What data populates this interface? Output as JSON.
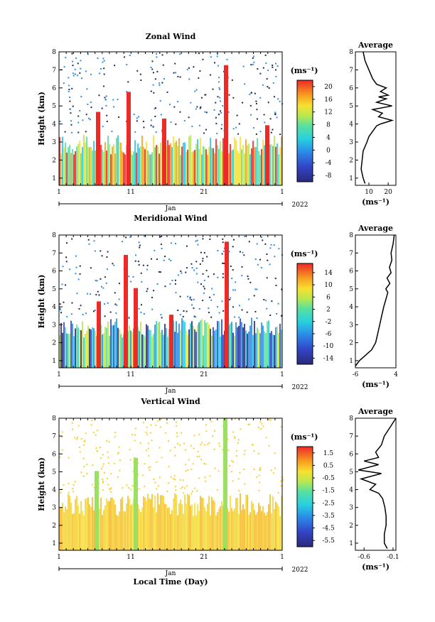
{
  "chart_data": [
    {
      "type": "heatmap",
      "title": "Zonal Wind",
      "ylabel": "Height (km)",
      "xlabel": "",
      "x_tick_labels": [
        "1",
        "11",
        "21",
        "1"
      ],
      "x_month_label": "Jan",
      "x_year_label": "2022",
      "ylim": [
        0.6,
        8
      ],
      "y_ticks": [
        1,
        2,
        3,
        4,
        5,
        6,
        7,
        8
      ],
      "colorbar": {
        "unit": "(ms⁻¹)",
        "ticks": [
          20,
          16,
          12,
          8,
          4,
          0,
          -4,
          -8
        ],
        "range": [
          -10,
          22
        ]
      },
      "profile": {
        "title": "Average",
        "xlabel": "(ms⁻¹)",
        "x_ticks": [
          10,
          20
        ],
        "xlim": [
          3,
          24
        ],
        "height_km": [
          0.7,
          1.0,
          1.5,
          2.0,
          2.5,
          3.0,
          3.3,
          3.6,
          3.9,
          4.0,
          4.2,
          4.4,
          4.6,
          4.8,
          5.0,
          5.2,
          5.4,
          5.5,
          5.6,
          5.8,
          6.0,
          6.2,
          6.5,
          7.0,
          7.5,
          8.0
        ],
        "values": [
          8,
          7,
          6,
          6.5,
          7,
          9,
          10,
          12,
          14,
          16,
          22,
          15,
          17,
          12,
          22,
          14,
          19,
          15,
          20,
          16,
          19,
          14,
          12,
          10,
          8,
          7
        ]
      }
    },
    {
      "type": "heatmap",
      "title": "Meridional Wind",
      "ylabel": "Height (km)",
      "xlabel": "",
      "x_tick_labels": [
        "1",
        "11",
        "21",
        "1"
      ],
      "x_month_label": "Jan",
      "x_year_label": "2022",
      "ylim": [
        0.6,
        8
      ],
      "y_ticks": [
        1,
        2,
        3,
        4,
        5,
        6,
        7,
        8
      ],
      "colorbar": {
        "unit": "(ms⁻¹)",
        "ticks": [
          14,
          10,
          6,
          2,
          -2,
          -6,
          -10,
          -14
        ],
        "range": [
          -16,
          17
        ]
      },
      "profile": {
        "title": "Average",
        "xlabel": "(ms⁻¹)",
        "x_ticks": [
          -6,
          4
        ],
        "xlim": [
          -6,
          4
        ],
        "height_km": [
          0.7,
          1.0,
          1.3,
          1.6,
          2.0,
          2.5,
          3.0,
          3.5,
          4.0,
          4.4,
          4.8,
          5.0,
          5.3,
          5.6,
          5.9,
          6.2,
          6.6,
          7.0,
          7.5,
          8.0
        ],
        "values": [
          -6,
          -5,
          -3.5,
          -2,
          -1,
          -0.5,
          0,
          0.5,
          1,
          1.5,
          2,
          1.5,
          2.5,
          1.8,
          2.8,
          2.4,
          3,
          2.8,
          3.3,
          3.6
        ]
      }
    },
    {
      "type": "heatmap",
      "title": "Vertical Wind",
      "ylabel": "Height (km)",
      "xlabel": "Local Time (Day)",
      "x_tick_labels": [
        "1",
        "11",
        "21",
        "1"
      ],
      "x_month_label": "Jan",
      "x_year_label": "2022",
      "ylim": [
        0.6,
        8
      ],
      "y_ticks": [
        1,
        2,
        3,
        4,
        5,
        6,
        7,
        8
      ],
      "colorbar": {
        "unit": "(ms⁻¹)",
        "ticks": [
          1.5,
          0.5,
          -0.5,
          -1.5,
          -2.5,
          -3.5,
          -4.5,
          -5.5
        ],
        "range": [
          -6,
          2
        ]
      },
      "profile": {
        "title": "Average",
        "xlabel": "(ms⁻¹)",
        "x_ticks": [
          -0.6,
          -0.1
        ],
        "xlim": [
          -0.75,
          -0.05
        ],
        "height_km": [
          0.7,
          1.0,
          1.5,
          2.0,
          2.5,
          3.0,
          3.5,
          3.8,
          4.0,
          4.3,
          4.6,
          4.9,
          5.1,
          5.4,
          5.6,
          5.8,
          6.1,
          6.5,
          7.0,
          7.5,
          8.0
        ],
        "values": [
          -0.2,
          -0.25,
          -0.25,
          -0.22,
          -0.22,
          -0.24,
          -0.28,
          -0.35,
          -0.5,
          -0.4,
          -0.65,
          -0.3,
          -0.7,
          -0.35,
          -0.6,
          -0.35,
          -0.4,
          -0.3,
          -0.25,
          -0.15,
          -0.05
        ]
      }
    }
  ]
}
